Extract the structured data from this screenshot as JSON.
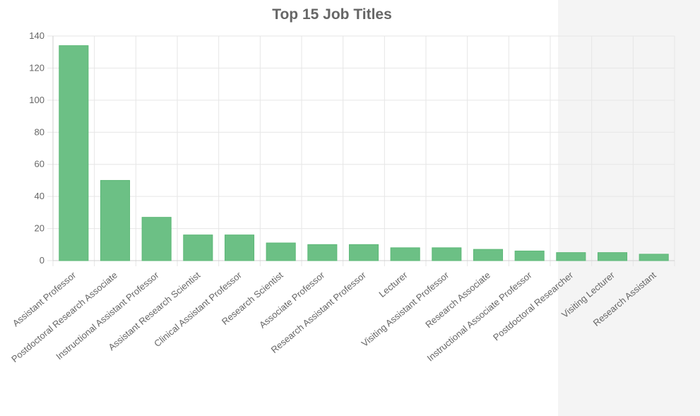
{
  "chart_data": {
    "type": "bar",
    "title": "Top 15 Job Titles",
    "categories": [
      "Assistant Professor",
      "Postdoctoral Research Associate",
      "Instructional Assistant Professor",
      "Assistant Research Scientist",
      "Clinical Assistant Professor",
      "Research Scientist",
      "Associate Professor",
      "Research Assistant Professor",
      "Lecturer",
      "Visiting Assistant Professor",
      "Research Associate",
      "Instructional Associate Professor",
      "Postdoctoral Researcher",
      "Visiting Lecturer",
      "Research Assistant"
    ],
    "values": [
      134,
      50,
      27,
      16,
      16,
      11,
      10,
      10,
      8,
      8,
      7,
      6,
      5,
      5,
      4
    ],
    "ylim": [
      0,
      140
    ],
    "yticks": [
      0,
      20,
      40,
      60,
      80,
      100,
      120,
      140
    ],
    "grid": true,
    "bar_color": "#6cc085",
    "bar_border_color": "#5cb877"
  }
}
